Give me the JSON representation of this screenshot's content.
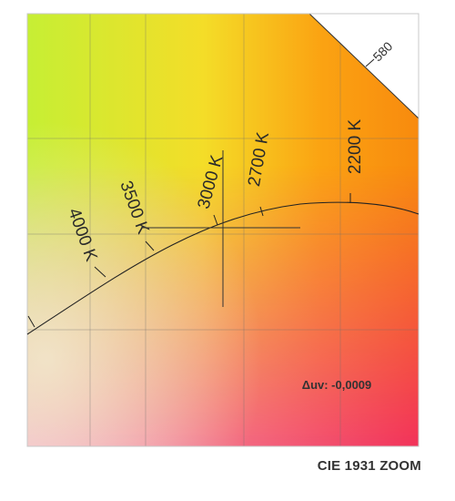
{
  "chart_data": {
    "type": "line",
    "title": "CIE 1931 ZOOM",
    "delta_uv": "Δuv: -0,0009",
    "spectral_locus_label": "580",
    "cct_labels": [
      {
        "label": "4000 K",
        "cct": 4000
      },
      {
        "label": "3500 K",
        "cct": 3500
      },
      {
        "label": "3000 K",
        "cct": 3000
      },
      {
        "label": "2700 K",
        "cct": 2700
      },
      {
        "label": "2200 K",
        "cct": 2200
      }
    ],
    "grid": true,
    "colors": {
      "axis": "#444444",
      "curve": "#222222",
      "text": "#333333"
    }
  }
}
